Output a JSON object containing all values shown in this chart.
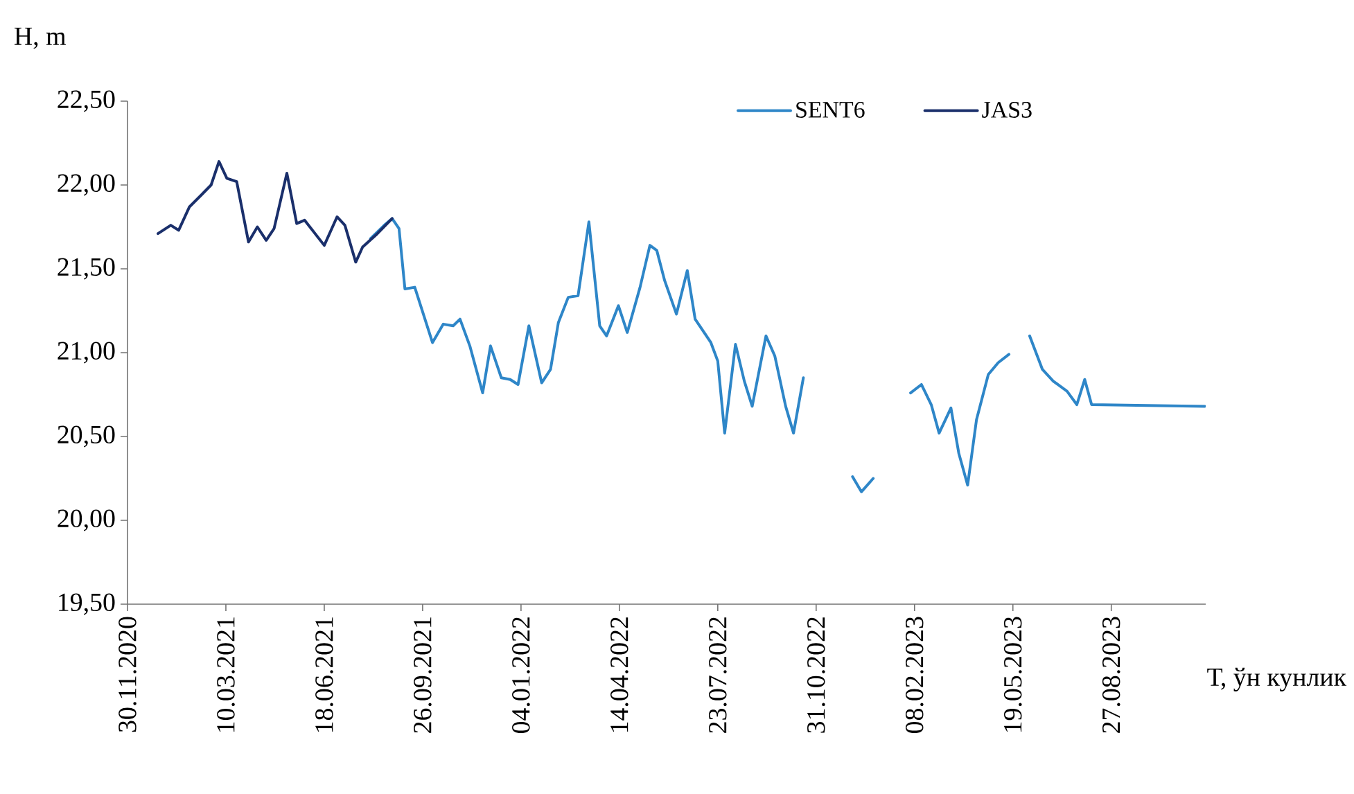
{
  "chart_data": {
    "type": "line",
    "xlabel": "Т, ўн кунлик",
    "ylabel": "H, m",
    "xlim": [
      "2020-11-30",
      "2023-12-01"
    ],
    "xticks": [
      {
        "value": "2020-11-30",
        "label": "30.11.2020"
      },
      {
        "value": "2021-03-10",
        "label": "10.03.2021"
      },
      {
        "value": "2021-06-18",
        "label": "18.06.2021"
      },
      {
        "value": "2021-09-26",
        "label": "26.09.2021"
      },
      {
        "value": "2022-01-04",
        "label": "04.01.2022"
      },
      {
        "value": "2022-04-14",
        "label": "14.04.2022"
      },
      {
        "value": "2022-07-23",
        "label": "23.07.2022"
      },
      {
        "value": "2022-10-31",
        "label": "31.10.2022"
      },
      {
        "value": "2023-02-08",
        "label": "08.02.2023"
      },
      {
        "value": "2023-05-19",
        "label": "19.05.2023"
      },
      {
        "value": "2023-08-27",
        "label": "27.08.2023"
      }
    ],
    "ylim": [
      19.5,
      22.5
    ],
    "yticks": [
      {
        "value": 19.5,
        "label": "19,50"
      },
      {
        "value": 20.0,
        "label": "20,00"
      },
      {
        "value": 20.5,
        "label": "20,50"
      },
      {
        "value": 21.0,
        "label": "21,00"
      },
      {
        "value": 21.5,
        "label": "21,50"
      },
      {
        "value": 22.0,
        "label": "22,00"
      },
      {
        "value": 22.5,
        "label": "22,50"
      }
    ],
    "legend": "top right",
    "grid": false,
    "series": [
      {
        "name": "SENT6",
        "color": "#2e86c8",
        "x": [
          "2021-08-04",
          "2021-08-18",
          "2021-08-26",
          "2021-09-02",
          "2021-09-08",
          "2021-09-18",
          "2021-10-06",
          "2021-10-17",
          "2021-10-27",
          "2021-11-03",
          "2021-11-13",
          "2021-11-26",
          "2021-12-04",
          "2021-12-15",
          "2021-12-24",
          "2022-01-01",
          "2022-01-12",
          "2022-01-25",
          "2022-02-03",
          "2022-02-11",
          "2022-02-21",
          "2022-03-03",
          "2022-03-14",
          "2022-03-25",
          "2022-04-01",
          "2022-04-13",
          "2022-04-22",
          "2022-05-05",
          "2022-05-15",
          "2022-05-22",
          "2022-05-30",
          "2022-06-11",
          "2022-06-22",
          "2022-06-30",
          "2022-07-16",
          "2022-07-23",
          "2022-07-30",
          "2022-08-10",
          "2022-08-19",
          "2022-08-27",
          "2022-09-10",
          "2022-09-19",
          "2022-09-30",
          "2022-10-08",
          "2022-10-18",
          "2022-11-15",
          "2022-12-07",
          "2022-12-16",
          "2022-12-28",
          "2023-01-15",
          "2023-02-04",
          "2023-02-15",
          "2023-02-25",
          "2023-03-05",
          "2023-03-17",
          "2023-03-25",
          "2023-04-03",
          "2023-04-12",
          "2023-04-24",
          "2023-05-04",
          "2023-05-15",
          "2023-05-25",
          "2023-06-05",
          "2023-06-18",
          "2023-06-29",
          "2023-07-13",
          "2023-07-23",
          "2023-07-31",
          "2023-08-07",
          "2023-11-30"
        ],
        "values": [
          21.68,
          21.76,
          21.8,
          21.74,
          21.38,
          21.39,
          21.06,
          21.17,
          21.16,
          21.2,
          21.04,
          20.76,
          21.04,
          20.85,
          20.84,
          20.81,
          21.16,
          20.82,
          20.9,
          21.18,
          21.33,
          21.34,
          21.78,
          21.16,
          21.1,
          21.28,
          21.12,
          21.39,
          21.64,
          21.61,
          21.43,
          21.23,
          21.49,
          21.2,
          21.06,
          20.95,
          20.52,
          21.05,
          20.83,
          20.68,
          21.1,
          20.98,
          20.68,
          20.52,
          20.85,
          null,
          20.26,
          20.17,
          20.25,
          null,
          20.76,
          20.81,
          20.69,
          20.52,
          20.67,
          20.4,
          20.21,
          20.6,
          20.87,
          20.94,
          20.99,
          null,
          21.1,
          20.9,
          20.83,
          20.77,
          20.69,
          20.84,
          20.69,
          20.68
        ]
      },
      {
        "name": "JAS3",
        "color": "#1a2f6b",
        "x": [
          "2020-12-31",
          "2021-01-13",
          "2021-01-21",
          "2021-02-01",
          "2021-02-13",
          "2021-02-23",
          "2021-03-03",
          "2021-03-11",
          "2021-03-21",
          "2021-04-02",
          "2021-04-11",
          "2021-04-20",
          "2021-04-28",
          "2021-05-11",
          "2021-05-21",
          "2021-05-29",
          "2021-06-18",
          "2021-07-01",
          "2021-07-09",
          "2021-07-20",
          "2021-07-27",
          "2021-08-11",
          "2021-08-26"
        ],
        "values": [
          21.71,
          21.76,
          21.73,
          21.87,
          21.94,
          22.0,
          22.14,
          22.04,
          22.02,
          21.66,
          21.75,
          21.67,
          21.74,
          22.07,
          21.77,
          21.79,
          21.64,
          21.81,
          21.76,
          21.54,
          21.63,
          21.71,
          21.8
        ]
      }
    ]
  }
}
